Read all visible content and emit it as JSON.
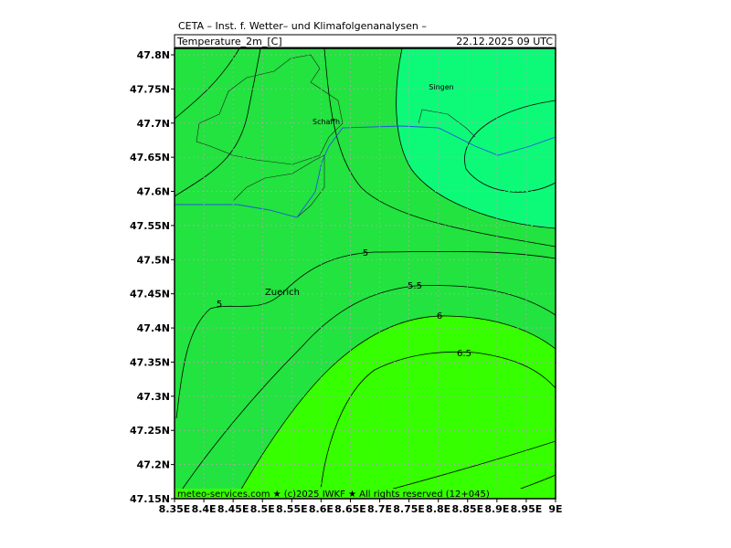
{
  "header": {
    "title": "CETA – Inst. f. Wetter– und Klimafolgenanalysen –",
    "variable": "Temperature_2m_[C]",
    "valid_time": "22.12.2025 09 UTC"
  },
  "lon_ticks": [
    {
      "value": 8.35,
      "label": "8.35E"
    },
    {
      "value": 8.4,
      "label": "8.4E"
    },
    {
      "value": 8.45,
      "label": "8.45E"
    },
    {
      "value": 8.5,
      "label": "8.5E"
    },
    {
      "value": 8.55,
      "label": "8.55E"
    },
    {
      "value": 8.6,
      "label": "8.6E"
    },
    {
      "value": 8.65,
      "label": "8.65E"
    },
    {
      "value": 8.7,
      "label": "8.7E"
    },
    {
      "value": 8.75,
      "label": "8.75E"
    },
    {
      "value": 8.8,
      "label": "8.8E"
    },
    {
      "value": 8.85,
      "label": "8.85E"
    },
    {
      "value": 8.9,
      "label": "8.9E"
    },
    {
      "value": 8.95,
      "label": "8.95E"
    },
    {
      "value": 9,
      "label": "9E"
    }
  ],
  "lat_ticks": [
    {
      "value": 47.8,
      "label": "47.8N"
    },
    {
      "value": 47.75,
      "label": "47.75N"
    },
    {
      "value": 47.7,
      "label": "47.7N"
    },
    {
      "value": 47.65,
      "label": "47.65N"
    },
    {
      "value": 47.6,
      "label": "47.6N"
    },
    {
      "value": 47.55,
      "label": "47.55N"
    },
    {
      "value": 47.5,
      "label": "47.5N"
    },
    {
      "value": 47.45,
      "label": "47.45N"
    },
    {
      "value": 47.4,
      "label": "47.4N"
    },
    {
      "value": 47.35,
      "label": "47.35N"
    },
    {
      "value": 47.3,
      "label": "47.3N"
    },
    {
      "value": 47.25,
      "label": "47.25N"
    },
    {
      "value": 47.2,
      "label": "47.2N"
    },
    {
      "value": 47.15,
      "label": "47.15N"
    }
  ],
  "contour_labels": [
    "5",
    "5",
    "5.5",
    "6",
    "6.5"
  ],
  "places": [
    "Singen",
    "Schaffh",
    "Zuerich"
  ],
  "footer": "meteo-services.com ★ (c)2025 IWKF ★ All rights reserved (12+045)"
}
